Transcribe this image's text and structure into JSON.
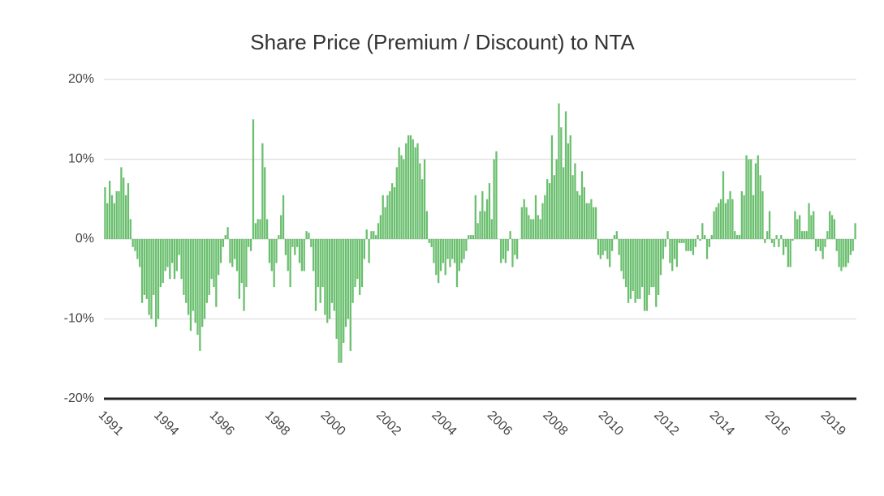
{
  "chart_data": {
    "type": "bar",
    "title": "Share Price (Premium / Discount) to NTA",
    "color": "#6abf6e",
    "grid": true,
    "ylim": [
      -20,
      20
    ],
    "yticks": [
      {
        "value": -20,
        "label": "-20%"
      },
      {
        "value": -10,
        "label": "-10%"
      },
      {
        "value": 0,
        "label": "0%"
      },
      {
        "value": 10,
        "label": "10%"
      },
      {
        "value": 20,
        "label": "20%"
      }
    ],
    "categories": [
      "1991",
      null,
      null,
      null,
      null,
      null,
      null,
      null,
      null,
      null,
      null,
      null,
      null,
      null,
      null,
      null,
      null,
      null,
      null,
      null,
      null,
      null,
      null,
      null,
      "1994",
      null,
      null,
      null,
      null,
      null,
      null,
      null,
      null,
      null,
      null,
      null,
      null,
      null,
      null,
      null,
      null,
      null,
      null,
      null,
      null,
      null,
      null,
      null,
      "1996",
      null,
      null,
      null,
      null,
      null,
      null,
      null,
      null,
      null,
      null,
      null,
      null,
      null,
      null,
      null,
      null,
      null,
      null,
      null,
      null,
      null,
      null,
      null,
      "1998",
      null,
      null,
      null,
      null,
      null,
      null,
      null,
      null,
      null,
      null,
      null,
      null,
      null,
      null,
      null,
      null,
      null,
      null,
      null,
      null,
      null,
      null,
      null,
      "2000",
      null,
      null,
      null,
      null,
      null,
      null,
      null,
      null,
      null,
      null,
      null,
      null,
      null,
      null,
      null,
      null,
      null,
      null,
      null,
      null,
      null,
      null,
      null,
      "2002",
      null,
      null,
      null,
      null,
      null,
      null,
      null,
      null,
      null,
      null,
      null,
      null,
      null,
      null,
      null,
      null,
      null,
      null,
      null,
      null,
      null,
      null,
      null,
      "2004",
      null,
      null,
      null,
      null,
      null,
      null,
      null,
      null,
      null,
      null,
      null,
      null,
      null,
      null,
      null,
      null,
      null,
      null,
      null,
      null,
      null,
      null,
      null,
      "2006",
      null,
      null,
      null,
      null,
      null,
      null,
      null,
      null,
      null,
      null,
      null,
      null,
      null,
      null,
      null,
      null,
      null,
      null,
      null,
      null,
      null,
      null,
      null,
      "2008",
      null,
      null,
      null,
      null,
      null,
      null,
      null,
      null,
      null,
      null,
      null,
      null,
      null,
      null,
      null,
      null,
      null,
      null,
      null,
      null,
      null,
      null,
      null,
      "2010",
      null,
      null,
      null,
      null,
      null,
      null,
      null,
      null,
      null,
      null,
      null,
      null,
      null,
      null,
      null,
      null,
      null,
      null,
      null,
      null,
      null,
      null,
      null,
      "2012",
      null,
      null,
      null,
      null,
      null,
      null,
      null,
      null,
      null,
      null,
      null,
      null,
      null,
      null,
      null,
      null,
      null,
      null,
      null,
      null,
      null,
      null,
      null,
      "2014",
      null,
      null,
      null,
      null,
      null,
      null,
      null,
      null,
      null,
      null,
      null,
      null,
      null,
      null,
      null,
      null,
      null,
      null,
      null,
      null,
      null,
      null,
      null,
      "2016",
      null,
      null,
      null,
      null,
      null,
      null,
      null,
      null,
      null,
      null,
      null,
      null,
      null,
      null,
      null,
      null,
      null,
      null,
      null,
      null,
      null,
      null,
      null,
      "2019",
      null,
      null,
      null,
      null,
      null,
      null,
      null,
      null,
      null,
      null,
      null,
      null
    ],
    "values": [
      6.5,
      4.5,
      7.3,
      5.5,
      4.5,
      6,
      6,
      9,
      7.7,
      5.5,
      7,
      2.5,
      -1,
      -1.5,
      -2.5,
      -3.5,
      -8,
      -7,
      -7.5,
      -9.5,
      -10,
      -7,
      -11,
      -10,
      -6,
      -5.5,
      -4,
      -3.5,
      -5,
      -3,
      -5,
      -4,
      -2,
      -5,
      -7,
      -8,
      -9.5,
      -11.5,
      -9,
      -10.5,
      -12,
      -14,
      -11,
      -10,
      -8,
      -7,
      -5,
      -6,
      -8.5,
      -4.5,
      -3,
      -1,
      0.5,
      1.5,
      -3,
      -3.5,
      -2.5,
      -4,
      -7.5,
      -5.5,
      -9,
      -6,
      -1,
      -1.5,
      15,
      2,
      2.5,
      2.5,
      12,
      9,
      2.5,
      -3,
      -4,
      -6,
      -3,
      0.5,
      3,
      5.5,
      -2,
      -4,
      -6,
      -1,
      -2,
      -1,
      -3,
      -4,
      -4,
      1,
      0.8,
      -1,
      -4,
      -9,
      -6,
      -8,
      -6,
      -9.5,
      -10.5,
      -10,
      -8,
      -9,
      -12.5,
      -15.5,
      -15.5,
      -13,
      -11,
      -10,
      -14,
      -8,
      -6,
      -5,
      -7,
      -6,
      -2.5,
      1.2,
      -3,
      1,
      1,
      0.5,
      2,
      3,
      5.5,
      4,
      5.5,
      6,
      7,
      6.5,
      9,
      11.5,
      10.5,
      10,
      12,
      13,
      13,
      12.5,
      11.5,
      12,
      9.5,
      7.5,
      10,
      3.5,
      -0.5,
      -1,
      -3,
      -4.5,
      -5.5,
      -4,
      -3,
      -4.5,
      -2.5,
      -3.5,
      -2.5,
      -3,
      -6,
      -4,
      -3,
      -2.5,
      -1.5,
      0.5,
      0.5,
      0.5,
      5.5,
      2,
      3.5,
      6,
      3.5,
      5,
      7,
      2.5,
      10,
      11,
      0,
      -3,
      -2.5,
      -3,
      -1.5,
      1,
      -3.5,
      -2,
      -2.5,
      0,
      4,
      5,
      4,
      3,
      2.5,
      2.5,
      5.5,
      3,
      2.5,
      4.5,
      5.5,
      7.5,
      7,
      13,
      8,
      10,
      17,
      14,
      9,
      16,
      12,
      13,
      8,
      9.5,
      6,
      5.5,
      8.5,
      6.5,
      4.5,
      4.5,
      5,
      4,
      4,
      -2,
      -2.5,
      -2,
      -1.5,
      -2.5,
      -3.5,
      -1.5,
      0.5,
      1,
      -2,
      -4,
      -5,
      -6,
      -8,
      -7.5,
      -6.5,
      -8,
      -7.5,
      -7.5,
      -6,
      -9,
      -9,
      -7,
      -6,
      -6,
      -8.5,
      -7,
      -4.5,
      -2.5,
      -1,
      1,
      -3,
      -4,
      -2.5,
      -3.5,
      -0.5,
      -0.5,
      -0.5,
      -1.5,
      -1.5,
      -1.5,
      -2,
      -1,
      0.5,
      -0.2,
      2,
      0.5,
      -2.5,
      -1,
      0.5,
      3.5,
      4,
      4.5,
      5,
      8.5,
      4.5,
      5,
      6,
      5,
      1,
      0.5,
      0.5,
      6,
      5.5,
      10.5,
      10,
      10,
      5.5,
      9.5,
      10.5,
      8,
      6,
      -0.5,
      1,
      3.5,
      -0.5,
      -1,
      0.5,
      -1,
      0.5,
      -2,
      -1,
      -3.5,
      -3.5,
      -0.2,
      3.5,
      2.5,
      3,
      1,
      1,
      1,
      4.5,
      3,
      3.5,
      -1.5,
      -1,
      -1.5,
      -2.5,
      -1,
      1,
      3.5,
      3,
      2.5,
      -1.5,
      -3.5,
      -4,
      -3.5,
      -3.5,
      -3,
      -2,
      -1.5,
      2
    ]
  }
}
